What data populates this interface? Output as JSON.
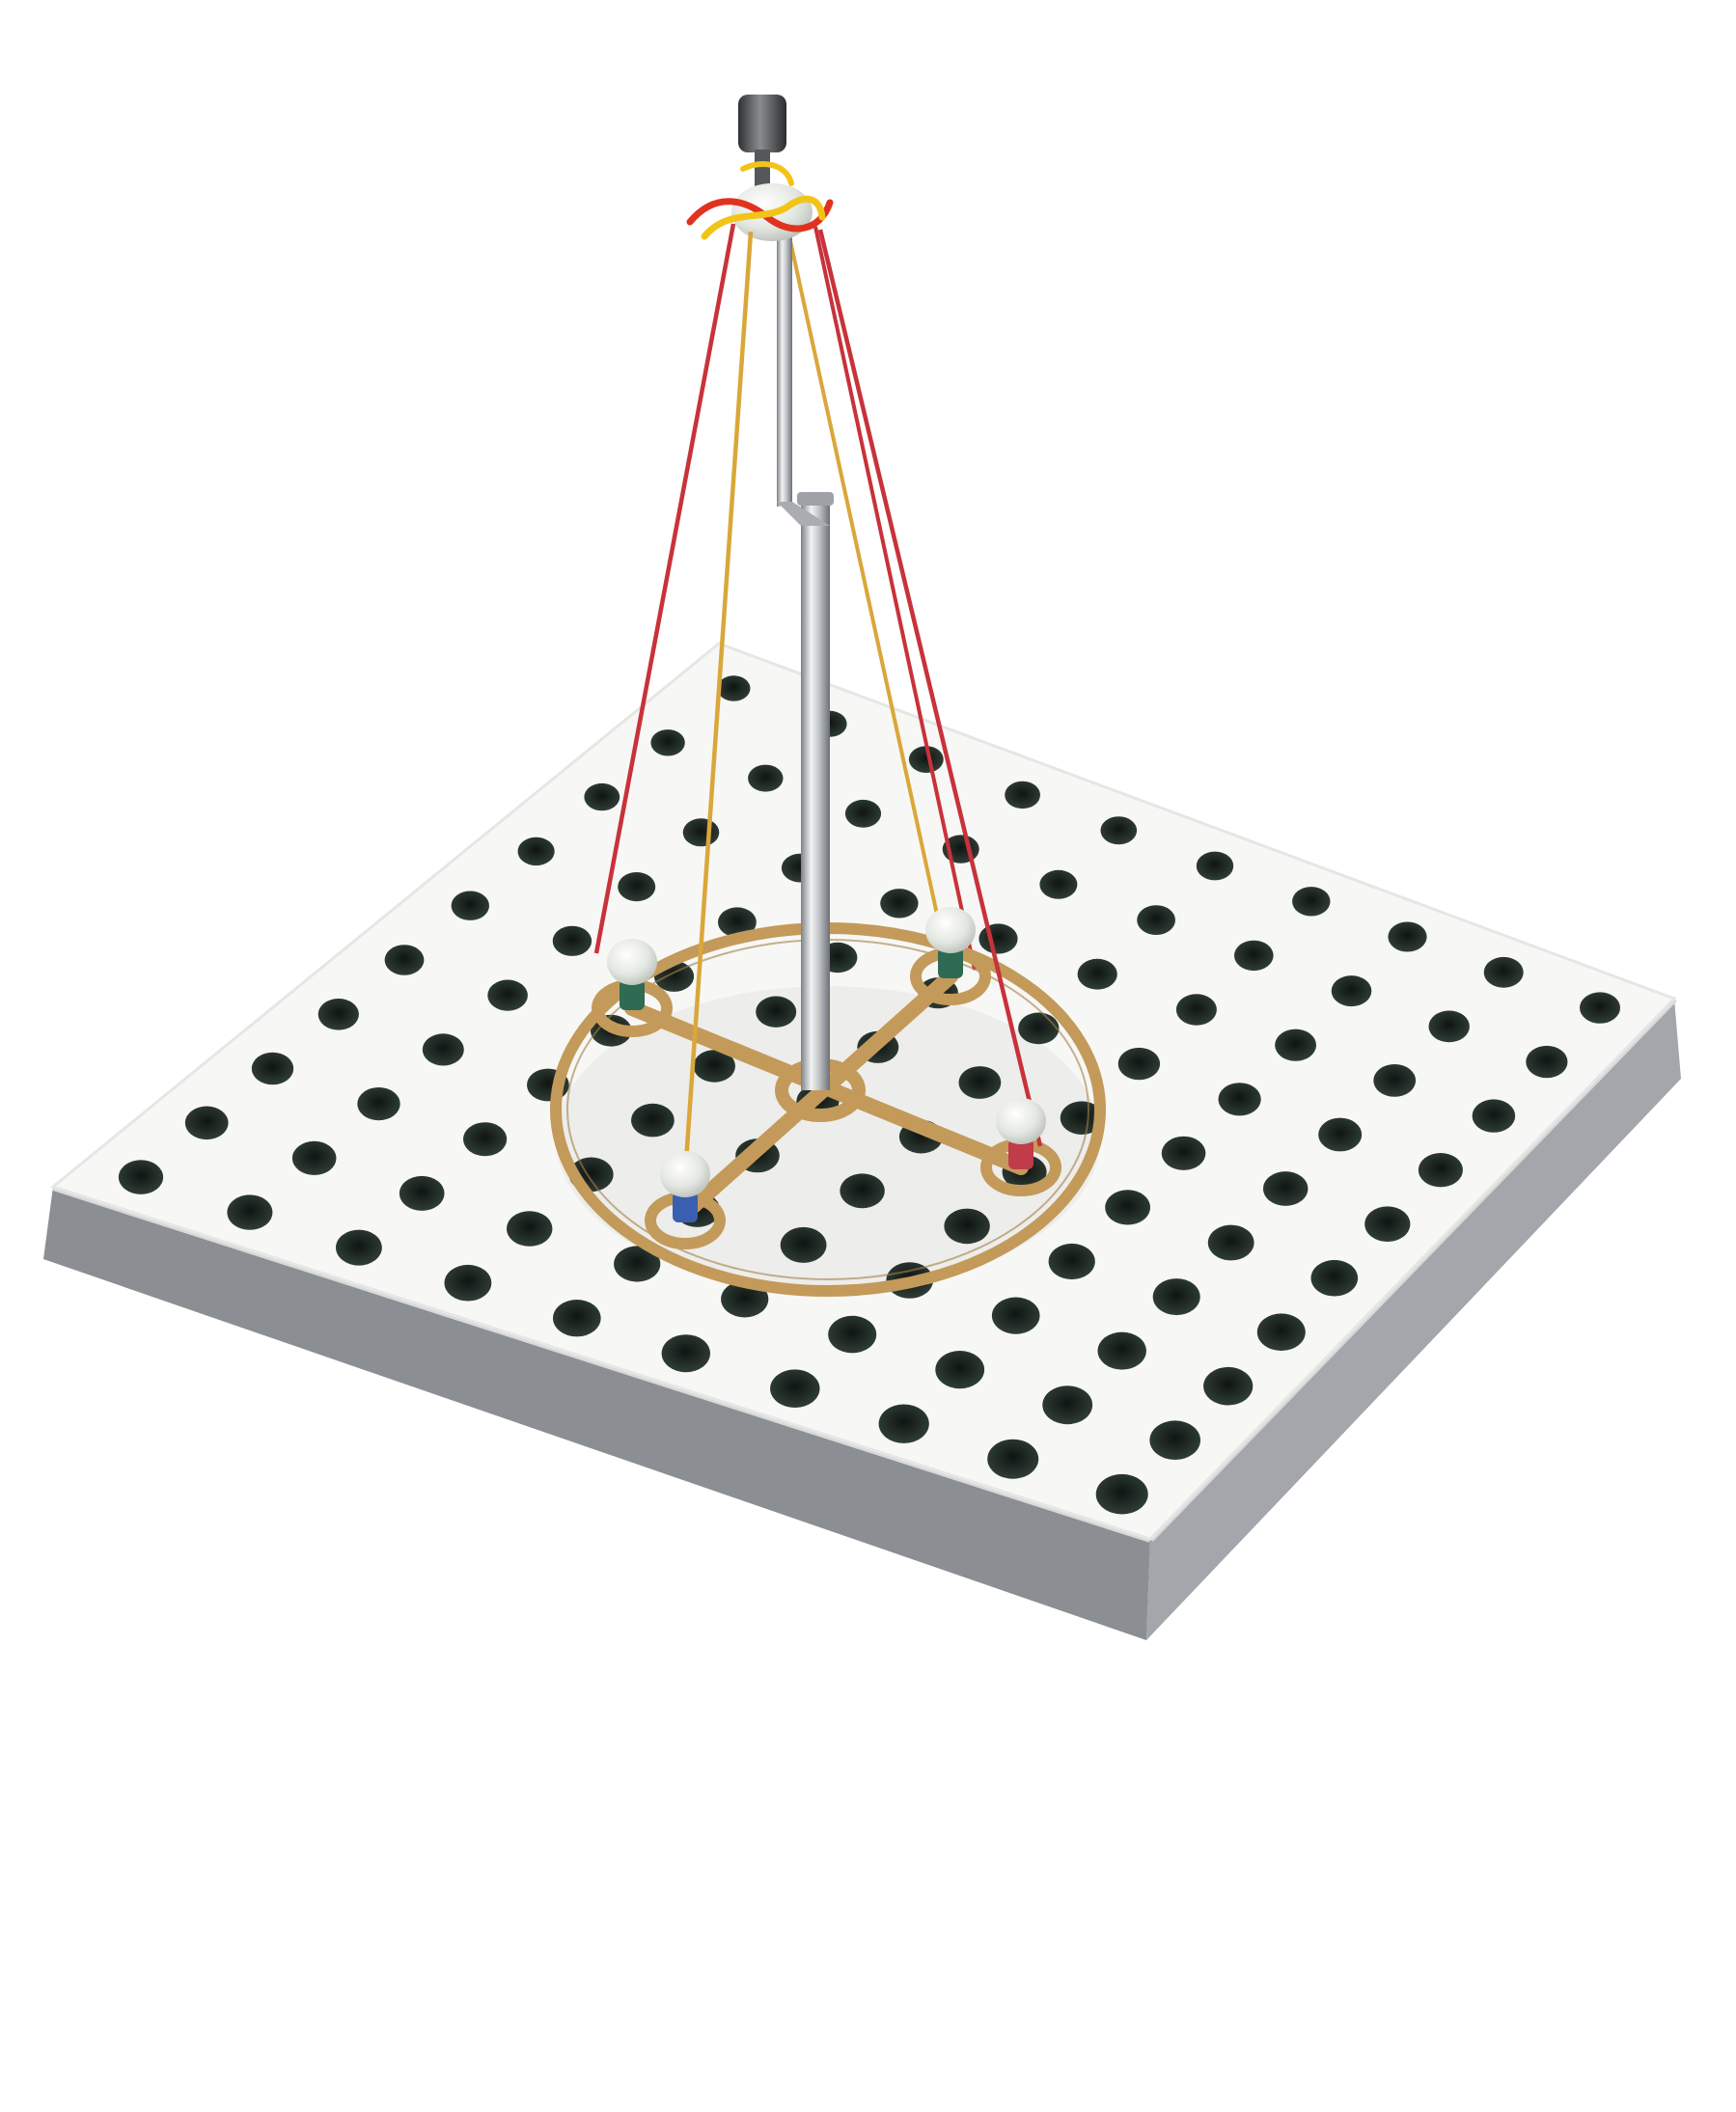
{
  "scene": {
    "subject": "pegboard-with-maypole-model",
    "colors": {
      "background": "#ffffff",
      "board_top": "#f7f7f5",
      "board_side": "#8e9094",
      "board_side_dark": "#6f7276",
      "hole": "#1f2a24",
      "ring": "#c39a5a",
      "ring_dark": "#9c7a45",
      "pole": "#c9ccd0",
      "pole_shadow": "#8a8e93",
      "cap": "#4b4d4f",
      "red_string": "#c8323a",
      "yellow_string": "#d9a73a",
      "bead": "#e9ece6",
      "knot_yellow": "#f2c418",
      "knot_red": "#e0331f"
    },
    "pegs": [
      {
        "name": "peg-top-left",
        "color": "#2f6a52"
      },
      {
        "name": "peg-top-right",
        "color": "#2f6a52"
      },
      {
        "name": "peg-bottom-left",
        "color": "#3a5fb0"
      },
      {
        "name": "peg-bottom-right",
        "color": "#c23b4a"
      }
    ],
    "board": {
      "rows": 10,
      "cols": 10
    }
  }
}
